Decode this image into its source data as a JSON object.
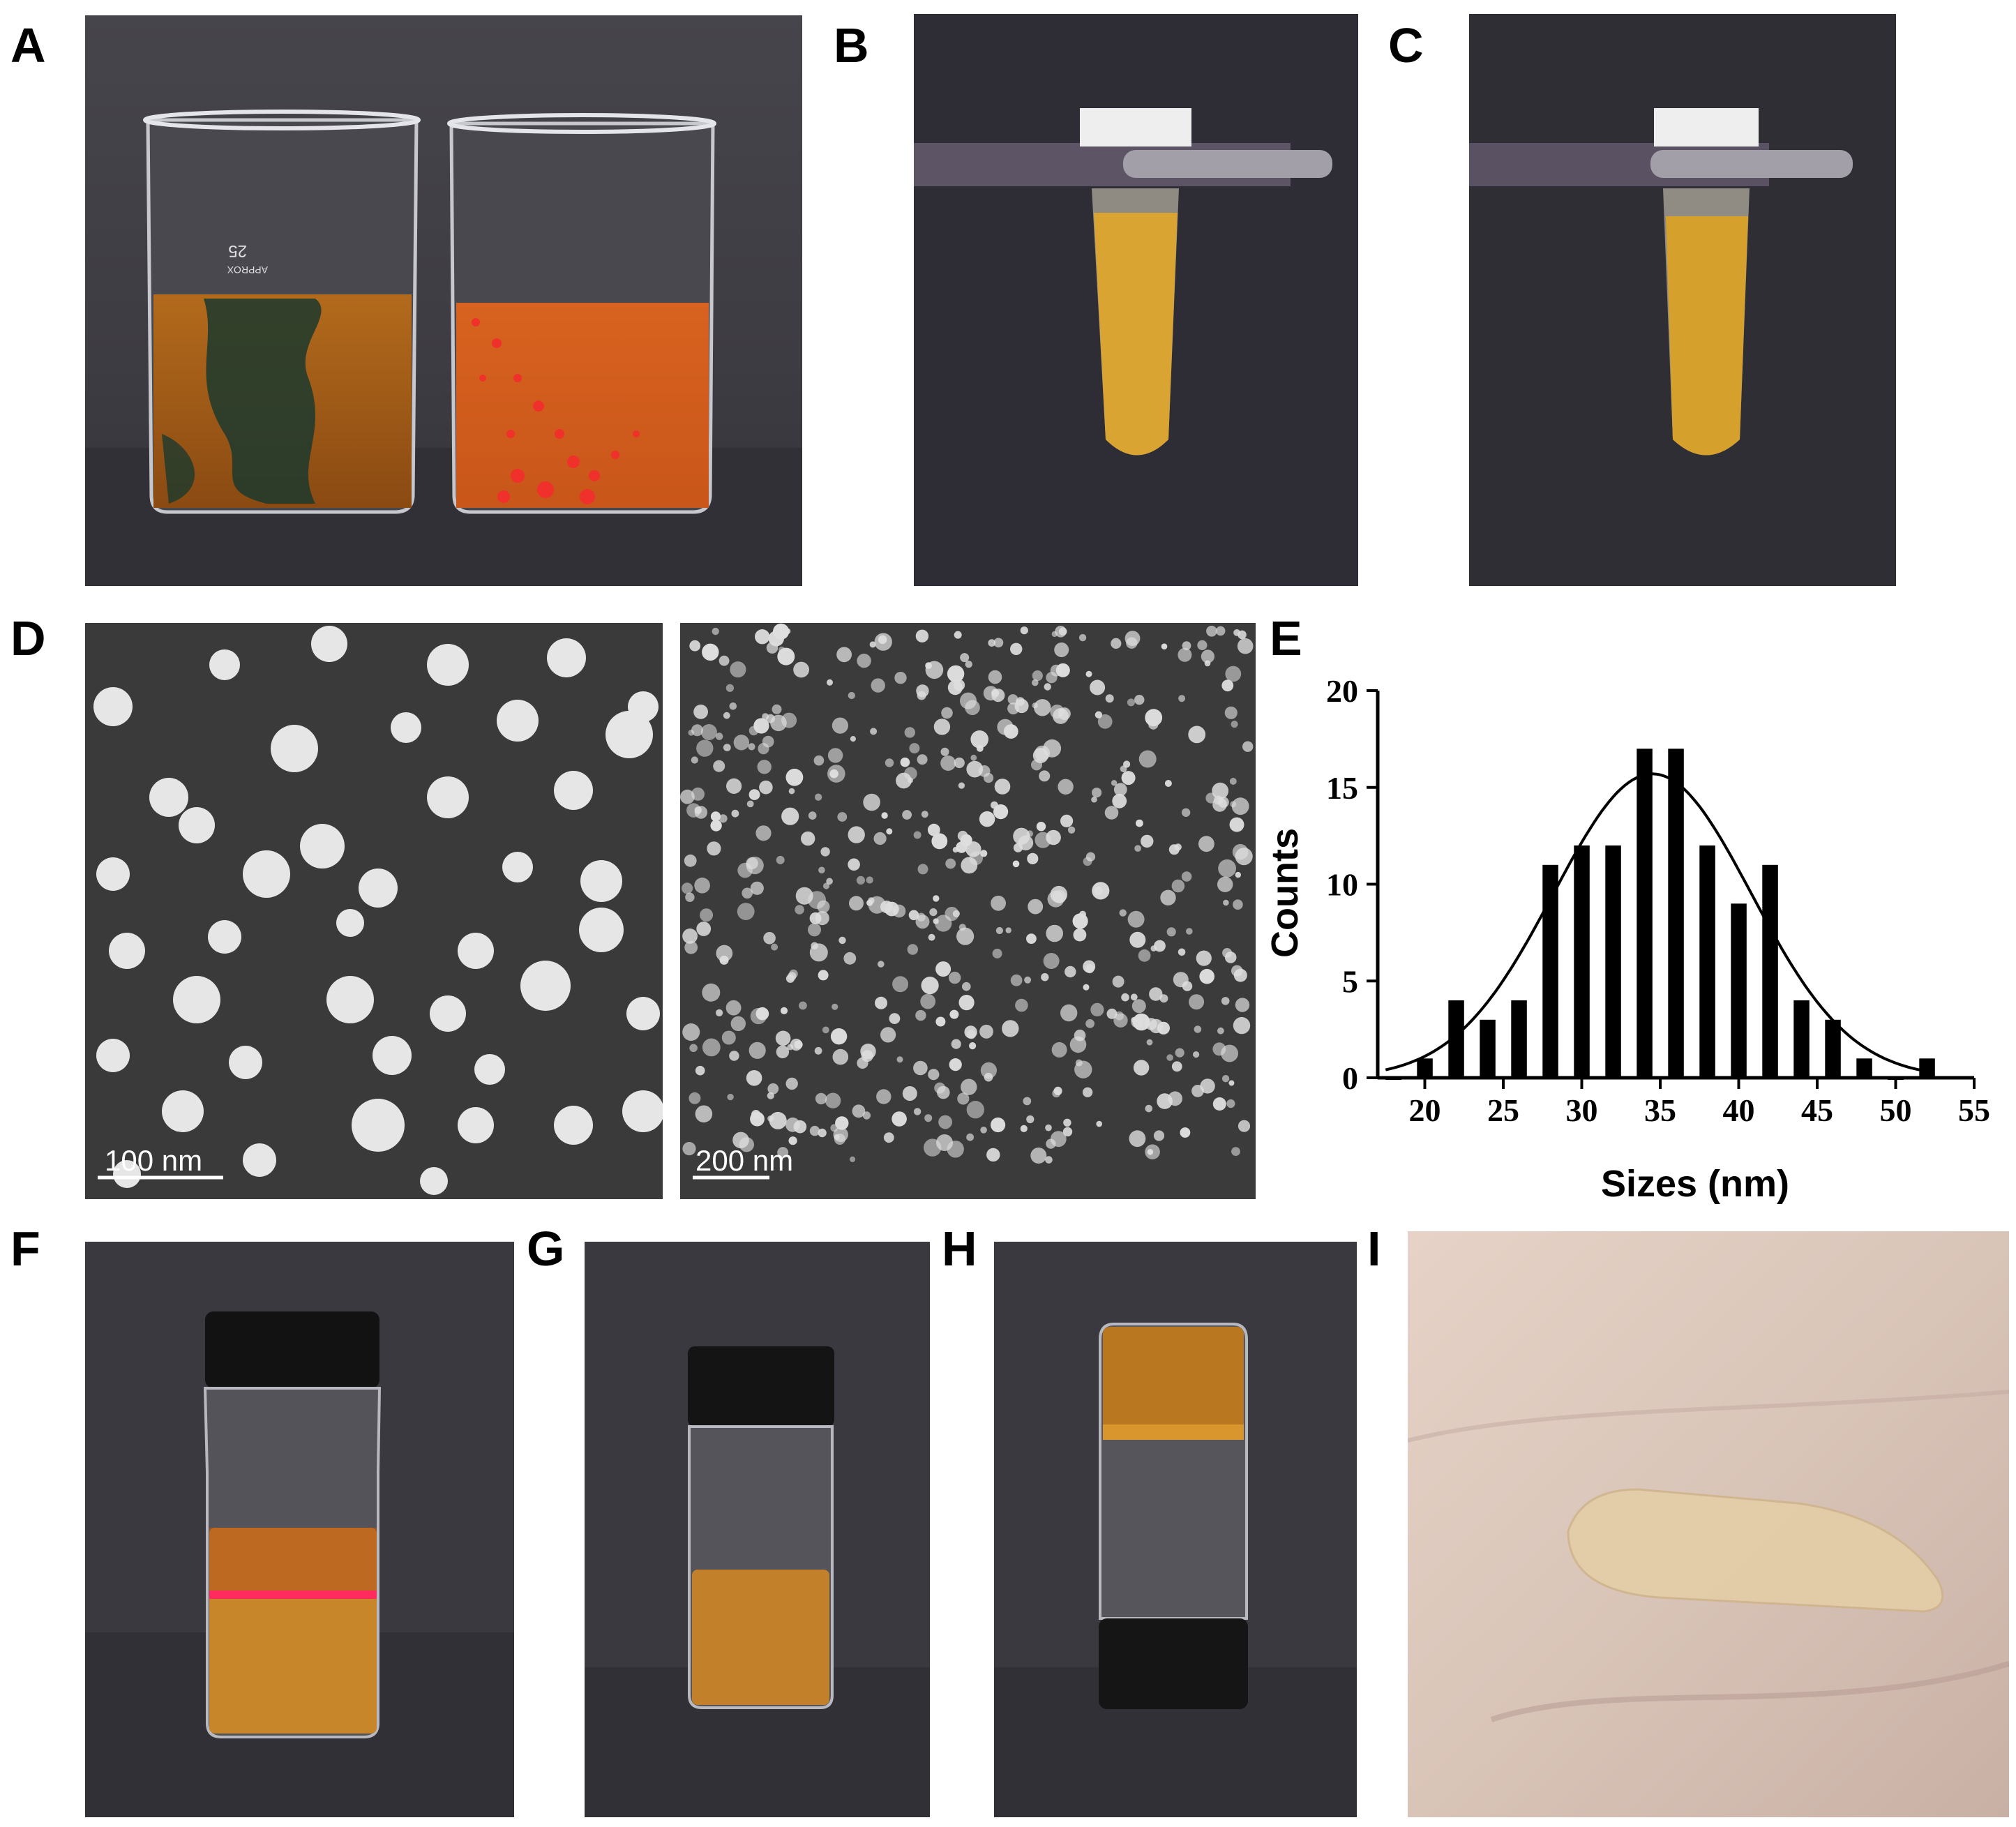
{
  "figure": {
    "panels": [
      "A",
      "B",
      "C",
      "D",
      "E",
      "F",
      "G",
      "H",
      "I"
    ]
  },
  "panel_a": {
    "beaker_marking_1": "25",
    "beaker_marking_2": "APPROX"
  },
  "panel_d": {
    "scale_left": "100 nm",
    "scale_right": "200 nm"
  },
  "colors": {
    "background_dark": "#3b3a40",
    "amber_liquid": "#c8862a",
    "red_liquid": "#e2471f",
    "green_dye": "#1c3a2e",
    "yellow_liquid": "#d9a431",
    "sem_background": "#3a3a3a",
    "skin": "#d8c2b4"
  },
  "chart_data": {
    "type": "bar",
    "x": [
      18,
      20,
      22,
      24,
      26,
      28,
      30,
      32,
      34,
      36,
      38,
      40,
      42,
      44,
      46,
      48,
      50,
      52
    ],
    "values": [
      0,
      1,
      4,
      3,
      4,
      11,
      12,
      12,
      17,
      17,
      12,
      9,
      11,
      4,
      3,
      1,
      0,
      1
    ],
    "fit_curve": {
      "type": "gaussian",
      "mean": 34.5,
      "sd": 6.3,
      "peak": 15.7
    },
    "xlabel": "Sizes (nm)",
    "ylabel": "Counts",
    "xlim": [
      17,
      55
    ],
    "ylim": [
      0,
      20
    ],
    "xticks": [
      "20",
      "25",
      "30",
      "35",
      "40",
      "45",
      "50",
      "55"
    ],
    "yticks": [
      "0",
      "5",
      "10",
      "15",
      "20"
    ],
    "grid": false
  }
}
